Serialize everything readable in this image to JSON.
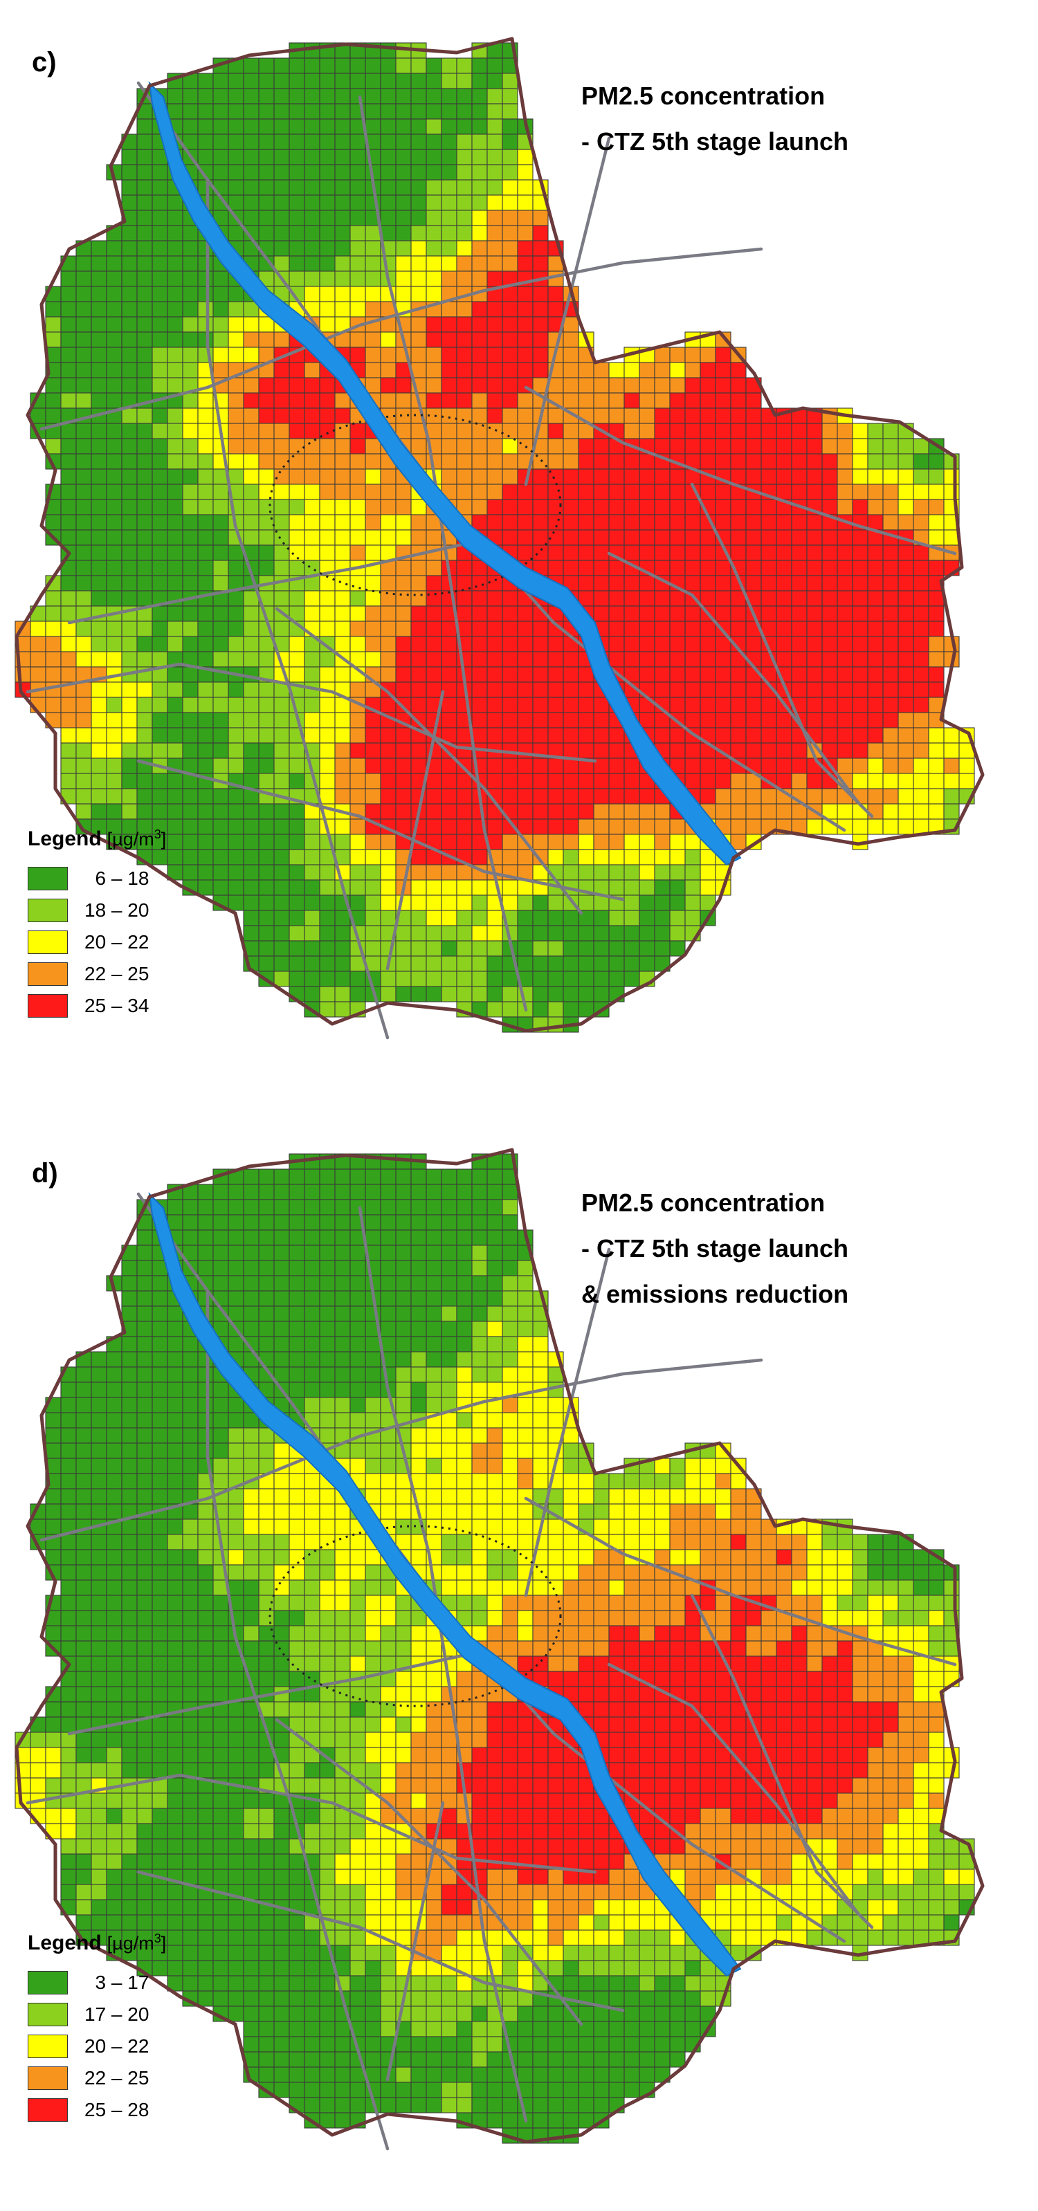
{
  "colors": {
    "class1": "#35a21b",
    "class2": "#8bd11e",
    "class3": "#ffff00",
    "class4": "#f7941e",
    "class5": "#ff1a1a",
    "river": "#1e90e6",
    "roads": "#7a7a84",
    "boundary": "#6b3a3a",
    "grid": "#3a3a3a"
  },
  "panels": [
    {
      "letter": "c)",
      "title_lines": [
        "PM2.5 concentration",
        "- CTZ  5th stage launch"
      ],
      "legend": {
        "title": "Legend",
        "unit": "[µg/m",
        "unit_sup": "3",
        "unit_close": "]",
        "classes": [
          {
            "label": "  6 – 18"
          },
          {
            "label": "18 – 20"
          },
          {
            "label": "20 – 22"
          },
          {
            "label": "22 – 25"
          },
          {
            "label": "25 – 34"
          }
        ]
      }
    },
    {
      "letter": "d)",
      "title_lines": [
        "PM2.5 concentration",
        "- CTZ  5th stage launch",
        "& emissions reduction"
      ],
      "legend": {
        "title": "Legend",
        "unit": "[µg/m",
        "unit_sup": "3",
        "unit_close": "]",
        "classes": [
          {
            "label": "  3 – 17"
          },
          {
            "label": "17 – 20"
          },
          {
            "label": "20 – 22"
          },
          {
            "label": "22 – 25"
          },
          {
            "label": "25 – 28"
          }
        ]
      }
    }
  ]
}
